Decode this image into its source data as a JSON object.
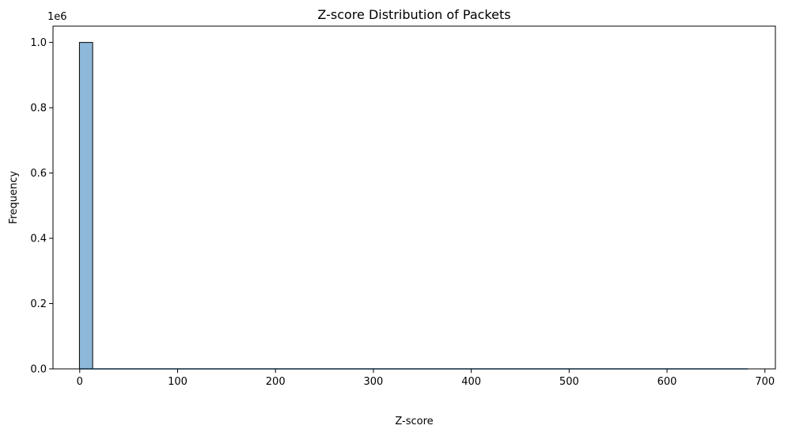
{
  "chart_data": {
    "type": "bar",
    "title": "Z-score Distribution of Packets",
    "xlabel": "Z-score",
    "ylabel": "Frequency",
    "y_offset_label": "1e6",
    "xlim": [
      -27.3,
      710.7
    ],
    "ylim": [
      0,
      1.05
    ],
    "x_ticks": [
      0,
      100,
      200,
      300,
      400,
      500,
      600,
      700
    ],
    "x_tick_labels": [
      "0",
      "100",
      "200",
      "300",
      "400",
      "500",
      "600",
      "700"
    ],
    "y_ticks": [
      0.0,
      0.2,
      0.4,
      0.6,
      0.8,
      1.0
    ],
    "y_tick_labels": [
      "0.0",
      "0.2",
      "0.4",
      "0.6",
      "0.8",
      "1.0"
    ],
    "bins": [
      {
        "x0": -0.3,
        "x1": 13.2,
        "value": 1.0
      }
    ],
    "kde_line": {
      "x": [
        -0.3,
        5,
        13.2,
        100,
        200,
        300,
        400,
        500,
        600,
        682.6
      ],
      "y": [
        0.0,
        0.0,
        0.0,
        0.0,
        0.0,
        0.0,
        0.0,
        0.0,
        0.0,
        0.0
      ]
    },
    "colors": {
      "bar_fill": "#8db8da",
      "bar_edge": "#000000",
      "kde_line": "#1f77b4"
    },
    "grid": false
  }
}
